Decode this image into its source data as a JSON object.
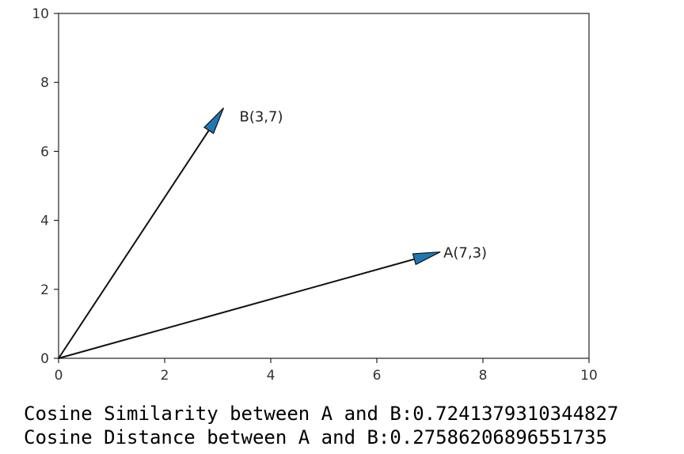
{
  "chart_data": {
    "type": "vector",
    "xlim": [
      0,
      10
    ],
    "ylim": [
      0,
      10
    ],
    "xticks": [
      "0",
      "2",
      "4",
      "6",
      "8",
      "10"
    ],
    "yticks": [
      "0",
      "2",
      "4",
      "6",
      "8",
      "10"
    ],
    "grid": false,
    "arrow_color": "#1f77b4",
    "vectors": [
      {
        "label": "A(7,3)",
        "origin": [
          0,
          0
        ],
        "end": [
          7,
          3
        ]
      },
      {
        "label": "B(3,7)",
        "origin": [
          0,
          0
        ],
        "end": [
          3,
          7
        ]
      }
    ]
  },
  "output": {
    "line1": "Cosine Similarity between A and B:0.7241379310344827",
    "line2": "Cosine Distance between A and B:0.27586206896551735"
  }
}
